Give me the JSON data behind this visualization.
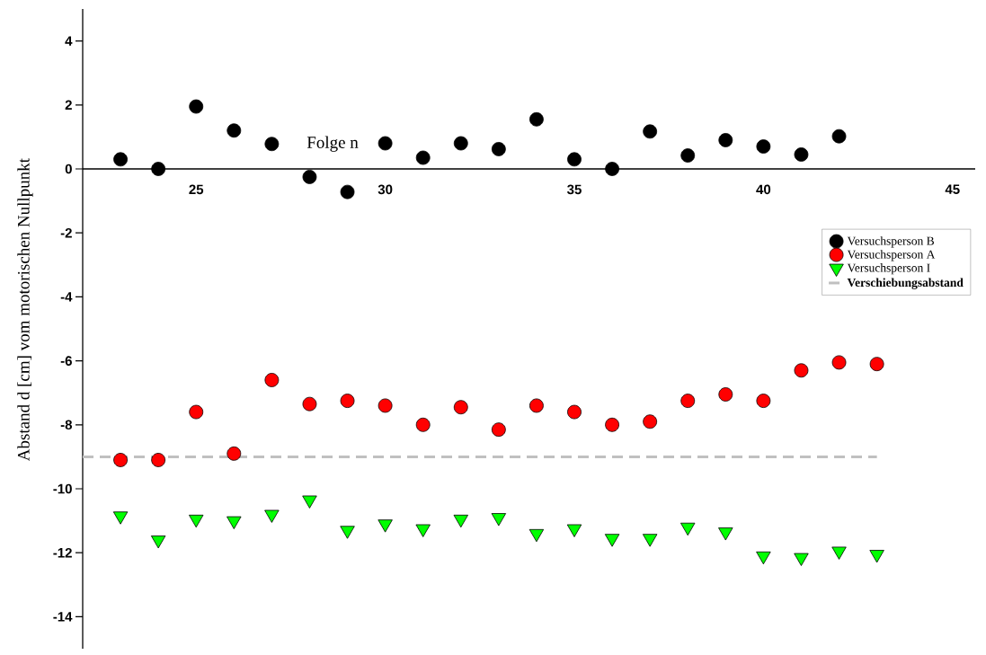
{
  "chart_data": {
    "type": "scatter",
    "xlabel": "Folge n",
    "ylabel": "Abstand d [cm] vom motorischen Nullpunkt",
    "xlim": [
      22,
      45.6
    ],
    "ylim": [
      -15,
      5
    ],
    "xticks": [
      25,
      30,
      35,
      40,
      45
    ],
    "yticks": [
      -14,
      -12,
      -10,
      -8,
      -6,
      -4,
      -2,
      0,
      2,
      4
    ],
    "grid": false,
    "legend": "right",
    "series": [
      {
        "name": "Versuchsperson B",
        "color": "#000000",
        "marker": "circle",
        "x": [
          23,
          24,
          25,
          26,
          27,
          28,
          29,
          30,
          31,
          32,
          33,
          34,
          35,
          36,
          37,
          38,
          39,
          40,
          41,
          42
        ],
        "values": [
          0.3,
          0,
          1.95,
          1.2,
          0.78,
          -0.25,
          -0.72,
          0.8,
          0.35,
          0.8,
          0.62,
          1.55,
          0.3,
          0,
          1.17,
          0.42,
          0.9,
          0.7,
          0.45,
          1.02
        ]
      },
      {
        "name": "Versuchsperson A",
        "color": "#ff0000",
        "marker": "circle",
        "x": [
          23,
          24,
          25,
          26,
          27,
          28,
          29,
          30,
          31,
          32,
          33,
          34,
          35,
          36,
          37,
          38,
          39,
          40,
          41,
          42,
          43
        ],
        "values": [
          -9.1,
          -9.1,
          -7.6,
          -8.9,
          -6.6,
          -7.35,
          -7.25,
          -7.4,
          -8.0,
          -7.45,
          -8.15,
          -7.4,
          -7.6,
          -8.0,
          -7.9,
          -7.25,
          -7.05,
          -7.25,
          -6.3,
          -6.05,
          -6.1
        ]
      },
      {
        "name": "Versuchsperson I",
        "color": "#00ff00",
        "marker": "triangle",
        "x": [
          23,
          24,
          25,
          26,
          27,
          28,
          29,
          30,
          31,
          32,
          33,
          34,
          35,
          36,
          37,
          38,
          39,
          40,
          41,
          42,
          43
        ],
        "values": [
          -10.85,
          -11.6,
          -10.95,
          -11.0,
          -10.8,
          -10.35,
          -11.3,
          -11.1,
          -11.25,
          -10.95,
          -10.9,
          -11.4,
          -11.25,
          -11.55,
          -11.55,
          -11.2,
          -11.35,
          -12.1,
          -12.15,
          -11.95,
          -12.05
        ]
      },
      {
        "name": "**Verschiebungsabstand**",
        "type": "line",
        "color": "#c0c0c0",
        "line_style": "dashed",
        "marker": "none",
        "x": [
          22,
          43
        ],
        "values": [
          -9,
          -9
        ]
      }
    ]
  }
}
